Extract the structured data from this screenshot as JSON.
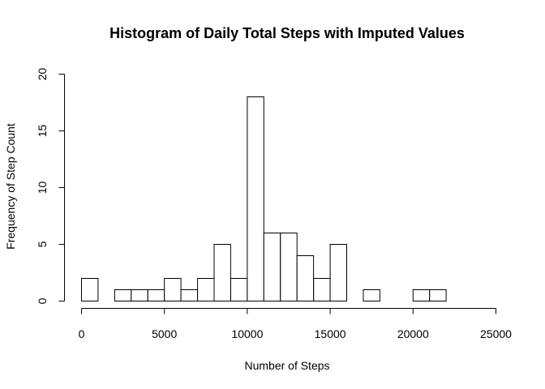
{
  "chart_data": {
    "type": "bar",
    "title": "Histogram of Daily Total Steps with Imputed Values",
    "xlabel": "Number of Steps",
    "ylabel": "Frequency of Step Count",
    "bin_width": 1000,
    "bin_starts": [
      0,
      1000,
      2000,
      3000,
      4000,
      5000,
      6000,
      7000,
      8000,
      9000,
      10000,
      11000,
      12000,
      13000,
      14000,
      15000,
      16000,
      17000,
      18000,
      19000,
      20000,
      21000
    ],
    "values": [
      2,
      0,
      1,
      1,
      1,
      2,
      1,
      2,
      5,
      2,
      18,
      6,
      6,
      4,
      2,
      5,
      0,
      1,
      0,
      0,
      1,
      1
    ],
    "xlim": [
      0,
      25000
    ],
    "ylim": [
      0,
      20
    ],
    "x_ticks": [
      "0",
      "5000",
      "10000",
      "15000",
      "20000",
      "25000"
    ],
    "y_ticks": [
      "0",
      "5",
      "10",
      "15",
      "20"
    ],
    "grid": false,
    "legend": "none"
  }
}
